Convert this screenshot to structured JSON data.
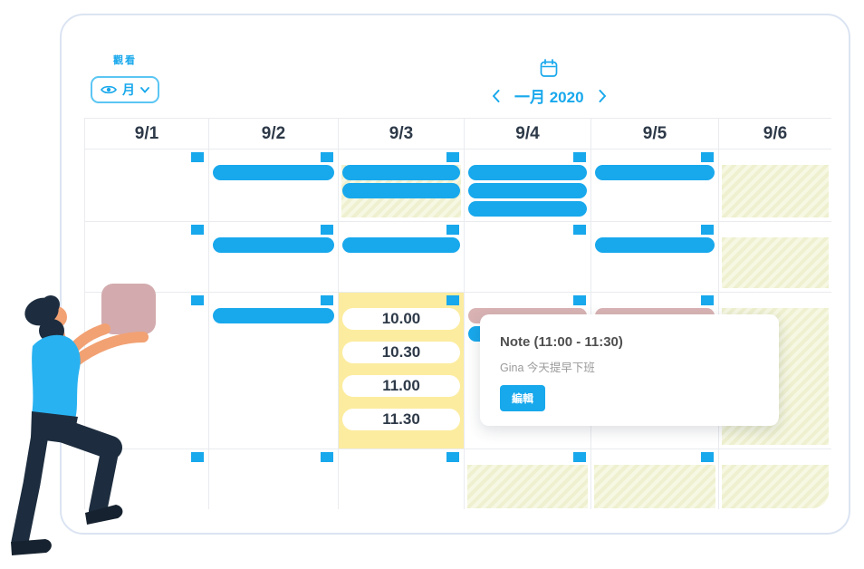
{
  "view_control": {
    "label": "觀看",
    "value": "月"
  },
  "month_nav": {
    "label": "一月 2020"
  },
  "calendar": {
    "day_headers": [
      "9/1",
      "9/2",
      "9/3",
      "9/4",
      "9/5",
      "9/6"
    ],
    "time_slots": [
      "10.00",
      "10.30",
      "11.00",
      "11.30"
    ],
    "events": [
      {
        "row": 0,
        "col": 1,
        "slot": 0,
        "kind": "blue"
      },
      {
        "row": 0,
        "col": 2,
        "slot": 0,
        "kind": "blue"
      },
      {
        "row": 0,
        "col": 2,
        "slot": 1,
        "kind": "blue"
      },
      {
        "row": 0,
        "col": 3,
        "slot": 0,
        "kind": "blue"
      },
      {
        "row": 0,
        "col": 3,
        "slot": 1,
        "kind": "blue"
      },
      {
        "row": 0,
        "col": 3,
        "slot": 2,
        "kind": "blue"
      },
      {
        "row": 0,
        "col": 4,
        "slot": 0,
        "kind": "blue"
      },
      {
        "row": 1,
        "col": 1,
        "slot": 0,
        "kind": "blue"
      },
      {
        "row": 1,
        "col": 2,
        "slot": 0,
        "kind": "blue"
      },
      {
        "row": 1,
        "col": 4,
        "slot": 0,
        "kind": "blue"
      },
      {
        "row": 2,
        "col": 1,
        "slot": 0,
        "kind": "blue"
      },
      {
        "row": 2,
        "col": 3,
        "slot": 0,
        "kind": "pink"
      },
      {
        "row": 2,
        "col": 3,
        "slot": 1,
        "kind": "blue"
      },
      {
        "row": 2,
        "col": 4,
        "slot": 0,
        "kind": "pink"
      }
    ],
    "hatched_cells": [
      [
        0,
        2
      ],
      [
        0,
        5
      ],
      [
        1,
        5
      ],
      [
        2,
        5
      ],
      [
        3,
        3
      ],
      [
        3,
        4
      ],
      [
        3,
        5
      ]
    ],
    "handle_rows": [
      0,
      1,
      2,
      3
    ],
    "handle_cols": [
      0,
      1,
      2,
      3,
      4
    ]
  },
  "tooltip": {
    "title": "Note (11:00 - 11:30)",
    "body": "Gina 今天提早下班",
    "edit_label": "編輯"
  },
  "colors": {
    "accent": "#18a8ec",
    "event_pink": "#d9b3b4",
    "slot_yellow": "#fcec9f",
    "hatch_base": "#eef0cf",
    "hatch_stripe": "#f7f8e4"
  }
}
